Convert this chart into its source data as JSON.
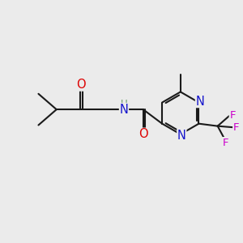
{
  "background_color": "#ebebeb",
  "bond_color": "#1a1a1a",
  "atom_colors": {
    "O": "#dd0000",
    "N": "#1414cc",
    "F": "#cc00cc",
    "H_label": "#6a9a6a",
    "C": "#1a1a1a"
  },
  "lw": 1.5,
  "fs": 9.5,
  "figsize": [
    3.0,
    3.0
  ],
  "dpi": 100
}
